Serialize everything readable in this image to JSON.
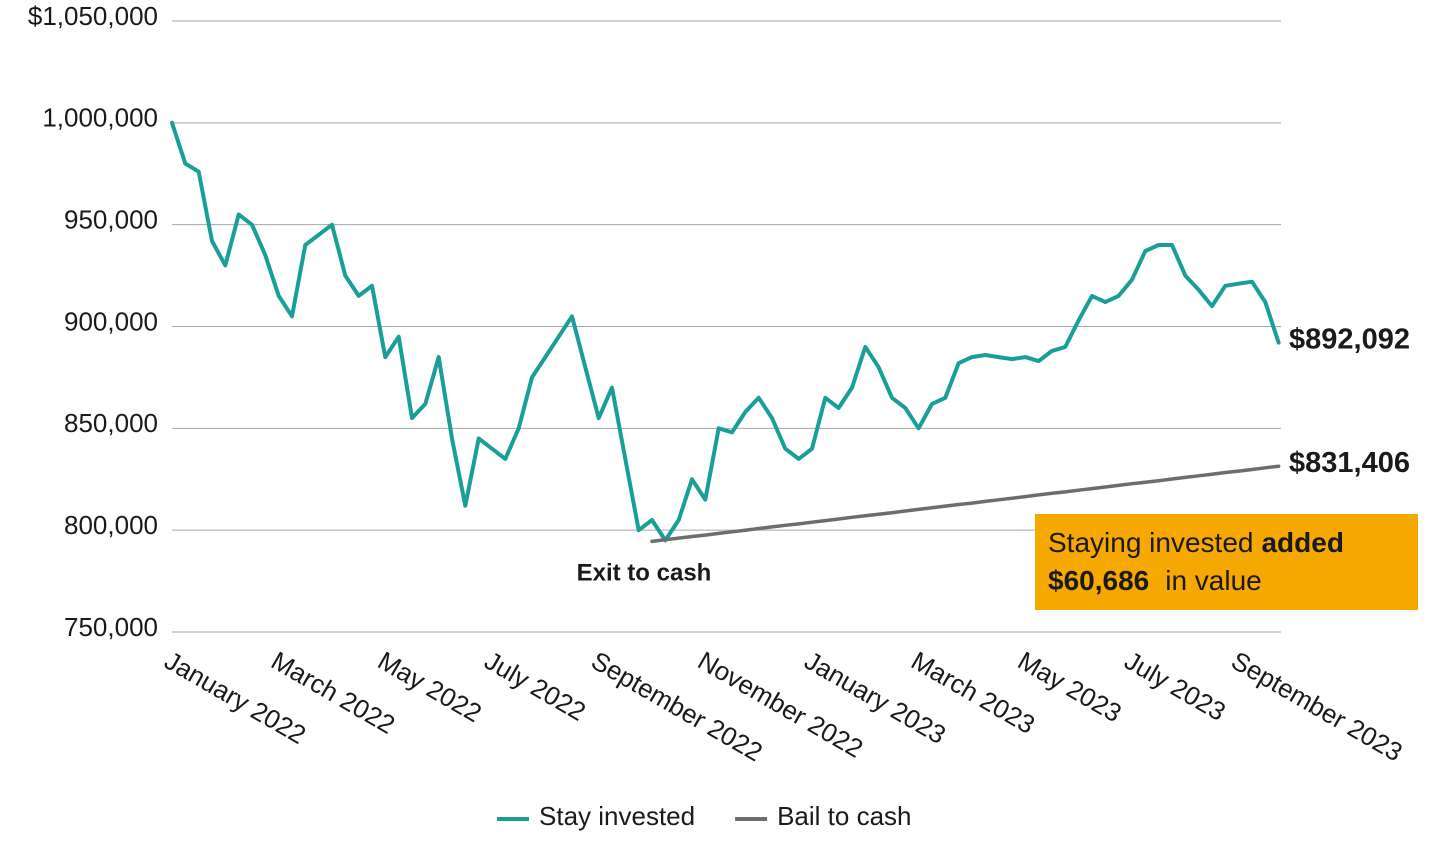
{
  "chart_data": {
    "type": "line",
    "categories": [
      "January 2022",
      null,
      null,
      null,
      null,
      null,
      null,
      null,
      "March 2022",
      null,
      null,
      null,
      null,
      null,
      null,
      null,
      "May 2022",
      null,
      null,
      null,
      null,
      null,
      null,
      null,
      "July 2022",
      null,
      null,
      null,
      null,
      null,
      null,
      null,
      "September 2022",
      null,
      null,
      null,
      null,
      null,
      null,
      null,
      "November 2022",
      null,
      null,
      null,
      null,
      null,
      null,
      null,
      "January 2023",
      null,
      null,
      null,
      null,
      null,
      null,
      null,
      "March 2023",
      null,
      null,
      null,
      null,
      null,
      null,
      null,
      "May 2023",
      null,
      null,
      null,
      null,
      null,
      null,
      null,
      "July 2023",
      null,
      null,
      null,
      null,
      null,
      null,
      null,
      "September 2023",
      null,
      null,
      null
    ],
    "series": [
      {
        "name": "Stay invested",
        "color": "#1a9e98",
        "values": [
          1000000,
          980000,
          976000,
          942000,
          930000,
          955000,
          950000,
          935000,
          915000,
          905000,
          940000,
          945000,
          950000,
          925000,
          915000,
          920000,
          885000,
          895000,
          855000,
          862000,
          885000,
          845000,
          812000,
          845000,
          840000,
          835000,
          850000,
          875000,
          885000,
          895000,
          905000,
          880000,
          855000,
          870000,
          835000,
          800000,
          805000,
          795000,
          805000,
          825000,
          815000,
          850000,
          848000,
          858000,
          865000,
          855000,
          840000,
          835000,
          840000,
          865000,
          860000,
          870000,
          890000,
          880000,
          865000,
          860000,
          850000,
          862000,
          865000,
          882000,
          885000,
          886000,
          885000,
          884000,
          885000,
          883000,
          888000,
          890000,
          903000,
          915000,
          912000,
          915000,
          923000,
          937000,
          940000,
          940000,
          925000,
          918000,
          910000,
          920000,
          921000,
          922000,
          912000,
          892092
        ],
        "value_labels": [
          null,
          null,
          null,
          null,
          null,
          null,
          null,
          null,
          null,
          null,
          null,
          null,
          null,
          null,
          null,
          null,
          null,
          null,
          null,
          null,
          null,
          null,
          null,
          null,
          null,
          null,
          null,
          null,
          null,
          null,
          null,
          null,
          null,
          null,
          null,
          null,
          null,
          null,
          null,
          null,
          null,
          null,
          null,
          null,
          null,
          null,
          null,
          null,
          null,
          null,
          null,
          null,
          null,
          null,
          null,
          null,
          null,
          null,
          null,
          null,
          null,
          null,
          null,
          null,
          null,
          null,
          null,
          null,
          null,
          null,
          null,
          null,
          null,
          null,
          null,
          null,
          null,
          null,
          null,
          null,
          null,
          null,
          null,
          "$892,092"
        ]
      },
      {
        "name": "Bail to cash",
        "color": "#6d6d6d",
        "values": [
          null,
          null,
          null,
          null,
          null,
          null,
          null,
          null,
          null,
          null,
          null,
          null,
          null,
          null,
          null,
          null,
          null,
          null,
          null,
          null,
          null,
          null,
          null,
          null,
          null,
          null,
          null,
          null,
          null,
          null,
          null,
          null,
          null,
          null,
          null,
          null,
          794500,
          795300,
          796100,
          796900,
          797600,
          798400,
          799200,
          800000,
          800800,
          801600,
          802400,
          803100,
          803900,
          804700,
          805500,
          806300,
          807100,
          807800,
          808600,
          809400,
          810200,
          811000,
          811800,
          812600,
          813300,
          814100,
          814900,
          815700,
          816500,
          817300,
          818100,
          818800,
          819600,
          820400,
          821200,
          822000,
          822800,
          823500,
          824300,
          825100,
          825900,
          826700,
          827500,
          828300,
          829000,
          829800,
          830600,
          831406
        ],
        "value_labels": [
          null,
          null,
          null,
          null,
          null,
          null,
          null,
          null,
          null,
          null,
          null,
          null,
          null,
          null,
          null,
          null,
          null,
          null,
          null,
          null,
          null,
          null,
          null,
          null,
          null,
          null,
          null,
          null,
          null,
          null,
          null,
          null,
          null,
          null,
          null,
          null,
          null,
          null,
          null,
          null,
          null,
          null,
          null,
          null,
          null,
          null,
          null,
          null,
          null,
          null,
          null,
          null,
          null,
          null,
          null,
          null,
          null,
          null,
          null,
          null,
          null,
          null,
          null,
          null,
          null,
          null,
          null,
          null,
          null,
          null,
          null,
          null,
          null,
          null,
          null,
          null,
          null,
          null,
          null,
          null,
          null,
          null,
          null,
          "$831,406"
        ]
      }
    ],
    "ylim": [
      750000,
      1050000
    ],
    "yticks": [
      750000,
      800000,
      850000,
      900000,
      950000,
      1000000,
      1050000
    ],
    "ytick_labels": [
      "750,000",
      "800,000",
      "850,000",
      "900,000",
      "950,000",
      "1,000,000",
      "$1,050,000"
    ],
    "grid": true,
    "legend": "bottom",
    "annotations": [
      {
        "text": "Exit to cash",
        "at": 36
      },
      {
        "box": true,
        "color": "#f5a800",
        "lines": [
          [
            {
              "text": "Staying invested"
            },
            {
              "text": "added",
              "bold": true
            }
          ],
          [
            {
              "text": "$60,686",
              "bold": true
            },
            {
              "text": "in value"
            }
          ]
        ]
      }
    ]
  }
}
